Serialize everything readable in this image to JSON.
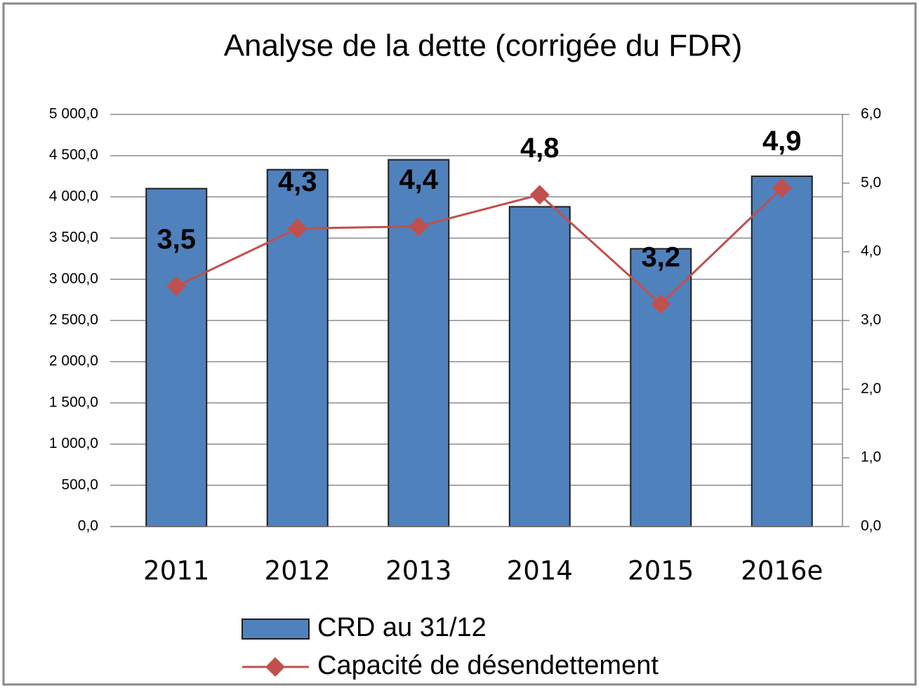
{
  "chart_data": {
    "type": "bar_line",
    "title": "Analyse de la dette (corrigée du FDR)",
    "categories": [
      "2011",
      "2012",
      "2013",
      "2014",
      "2015",
      "2016e"
    ],
    "series": [
      {
        "name": "CRD au 31/12",
        "type": "bar",
        "color": "#4f81bd",
        "values": [
          4100,
          4330,
          4450,
          3880,
          3370,
          4250
        ]
      },
      {
        "name": "Capacité de désendettement",
        "type": "line",
        "axis": "y2",
        "color": "#c0504d",
        "values": [
          3.5,
          4.34,
          4.37,
          4.83,
          3.24,
          4.93
        ],
        "value_labels": [
          "3,5",
          "4,3",
          "4,4",
          "4,8",
          "3,2",
          "4,9"
        ]
      }
    ],
    "ylim": [
      0,
      5000
    ],
    "yticks": [
      {
        "value": 0,
        "label": "0,0"
      },
      {
        "value": 500,
        "label": "500,0"
      },
      {
        "value": 1000,
        "label": "1 000,0"
      },
      {
        "value": 1500,
        "label": "1 500,0"
      },
      {
        "value": 2000,
        "label": "2 000,0"
      },
      {
        "value": 2500,
        "label": "2 500,0"
      },
      {
        "value": 3000,
        "label": "3 000,0"
      },
      {
        "value": 3500,
        "label": "3 500,0"
      },
      {
        "value": 4000,
        "label": "4 000,0"
      },
      {
        "value": 4500,
        "label": "4 500,0"
      },
      {
        "value": 5000,
        "label": "5 000,0"
      }
    ],
    "y2lim": [
      0,
      6
    ],
    "y2ticks": [
      {
        "value": 0,
        "label": "0,0"
      },
      {
        "value": 1,
        "label": "1,0"
      },
      {
        "value": 2,
        "label": "2,0"
      },
      {
        "value": 3,
        "label": "3,0"
      },
      {
        "value": 4,
        "label": "4,0"
      },
      {
        "value": 5,
        "label": "5,0"
      },
      {
        "value": 6,
        "label": "6,0"
      }
    ],
    "grid": true,
    "legend": "bottom"
  }
}
